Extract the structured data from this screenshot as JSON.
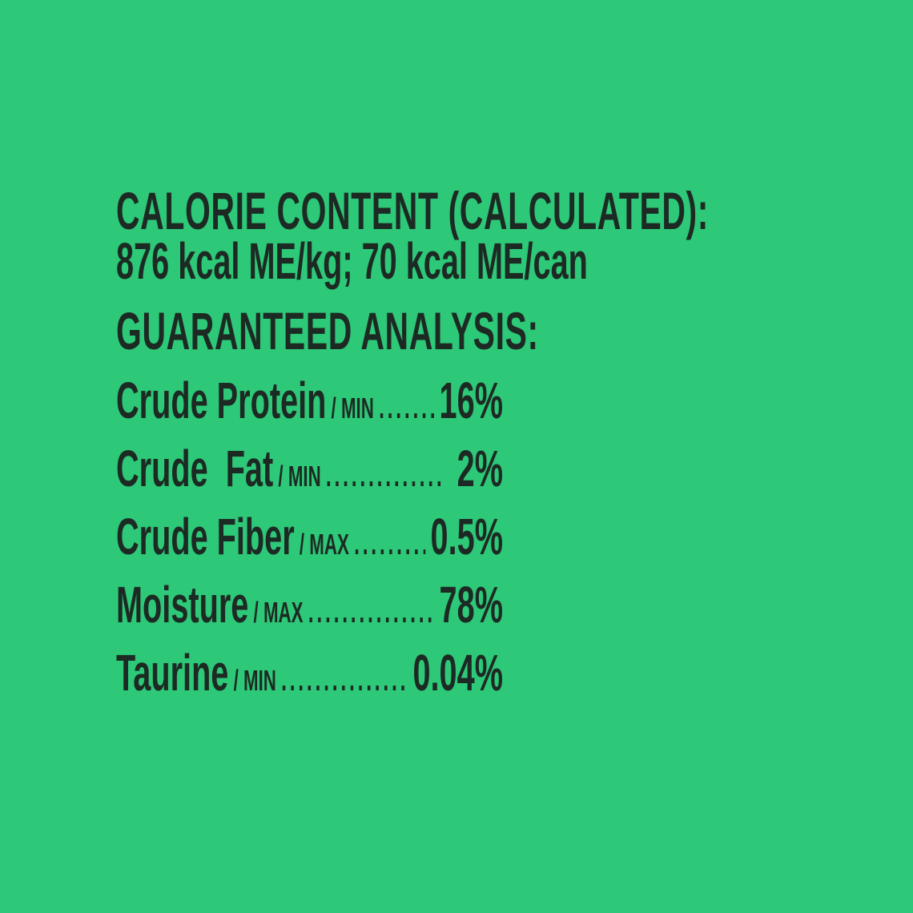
{
  "colors": {
    "background": "#2dc878",
    "text": "#1c2a23"
  },
  "calorie_section": {
    "heading": "CALORIE CONTENT (CALCULATED):",
    "value_line": "876 kcal ME/kg; 70 kcal ME/can"
  },
  "analysis_section": {
    "heading": "GUARANTEED ANALYSIS:",
    "rows": [
      {
        "label": "Crude Protein",
        "qualifier": "/ MIN",
        "dots": ".........",
        "value": "16%"
      },
      {
        "label": "Crude  Fat",
        "qualifier": "/ MIN",
        "dots": "..............",
        "value": "2%"
      },
      {
        "label": "Crude Fiber",
        "qualifier": "/ MAX",
        "dots": "............",
        "value": "0.5%"
      },
      {
        "label": "Moisture",
        "qualifier": "/ MAX",
        "dots": "................",
        "value": "78%"
      },
      {
        "label": "Taurine",
        "qualifier": "/ MIN",
        "dots": ".................",
        "value": "0.04%"
      }
    ]
  }
}
